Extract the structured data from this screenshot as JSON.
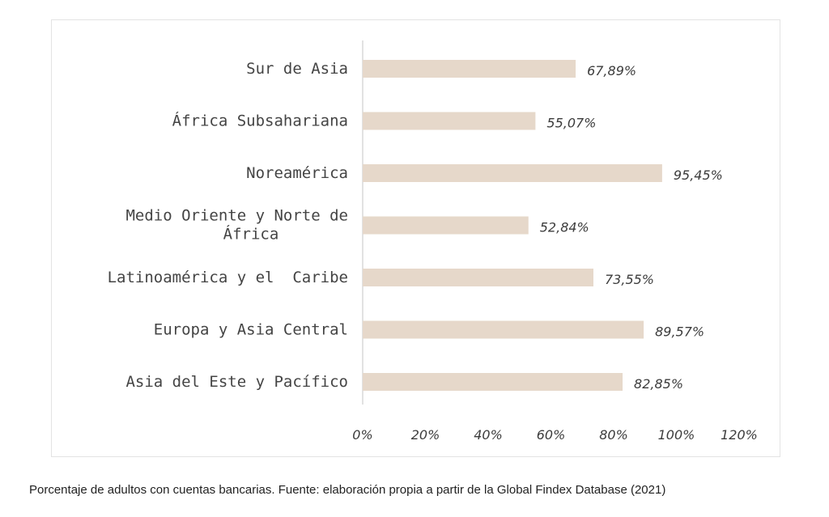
{
  "caption": "Porcentaje de adultos con cuentas bancarias. Fuente: elaboración propia a partir de la Global Findex Database (2021)",
  "chart_data": {
    "type": "bar",
    "orientation": "horizontal",
    "categories": [
      "Sur de Asia",
      "África Subsahariana",
      "Noreamérica",
      "Medio Oriente y Norte de África",
      "Latinoamérica y el  Caribe",
      "Europa y Asia Central",
      "Asia del Este y Pacífico"
    ],
    "values": [
      67.89,
      55.07,
      95.45,
      52.84,
      73.55,
      89.57,
      82.85
    ],
    "data_labels": [
      "67,89%",
      "55,07%",
      "95,45%",
      "52,84%",
      "73,55%",
      "89,57%",
      "82,85%"
    ],
    "xlim": [
      0,
      120
    ],
    "xticks": [
      0,
      20,
      40,
      60,
      80,
      100,
      120
    ],
    "xtick_labels": [
      "0%",
      "20%",
      "40%",
      "60%",
      "80%",
      "100%",
      "120%"
    ],
    "bar_color": "#e6d8ca",
    "axis_color": "#d9d9d9",
    "grid": false,
    "legend": "none"
  }
}
